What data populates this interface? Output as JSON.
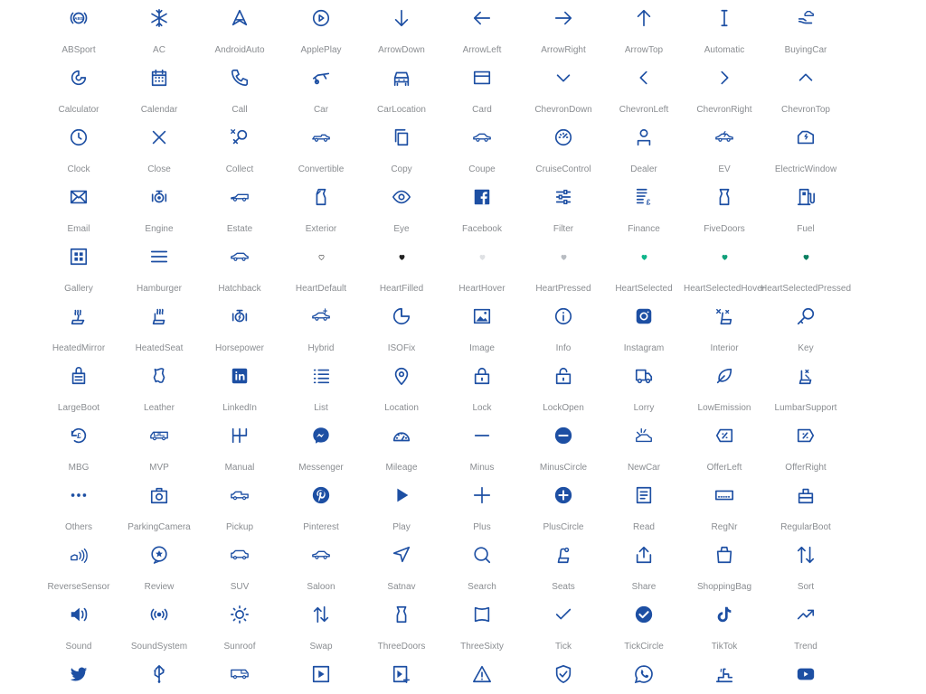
{
  "icon_color": "#1d4fa3",
  "accent_color": "#0fb58a",
  "label_color": "#8a8d91",
  "icons": [
    {
      "label": "ABSport",
      "icon": "abs-icon"
    },
    {
      "label": "AC",
      "icon": "snowflake-icon"
    },
    {
      "label": "AndroidAuto",
      "icon": "android-auto-icon"
    },
    {
      "label": "ApplePlay",
      "icon": "apple-play-icon"
    },
    {
      "label": "ArrowDown",
      "icon": "arrow-down-icon"
    },
    {
      "label": "ArrowLeft",
      "icon": "arrow-left-icon"
    },
    {
      "label": "ArrowRight",
      "icon": "arrow-right-icon"
    },
    {
      "label": "ArrowTop",
      "icon": "arrow-top-icon"
    },
    {
      "label": "Automatic",
      "icon": "automatic-icon"
    },
    {
      "label": "BuyingCar",
      "icon": "buying-car-icon"
    },
    {
      "label": "Calculator",
      "icon": "calculator-icon"
    },
    {
      "label": "Calendar",
      "icon": "calendar-icon"
    },
    {
      "label": "Call",
      "icon": "phone-icon"
    },
    {
      "label": "Car",
      "icon": "car-icon"
    },
    {
      "label": "CarLocation",
      "icon": "car-location-icon"
    },
    {
      "label": "Card",
      "icon": "card-icon"
    },
    {
      "label": "ChevronDown",
      "icon": "chevron-down-icon"
    },
    {
      "label": "ChevronLeft",
      "icon": "chevron-left-icon"
    },
    {
      "label": "ChevronRight",
      "icon": "chevron-right-icon"
    },
    {
      "label": "ChevronTop",
      "icon": "chevron-top-icon"
    },
    {
      "label": "Clock",
      "icon": "clock-icon"
    },
    {
      "label": "Close",
      "icon": "close-icon"
    },
    {
      "label": "Collect",
      "icon": "collect-icon"
    },
    {
      "label": "Convertible",
      "icon": "convertible-icon"
    },
    {
      "label": "Copy",
      "icon": "copy-icon"
    },
    {
      "label": "Coupe",
      "icon": "coupe-icon"
    },
    {
      "label": "CruiseControl",
      "icon": "cruise-control-icon"
    },
    {
      "label": "Dealer",
      "icon": "dealer-icon"
    },
    {
      "label": "EV",
      "icon": "ev-icon"
    },
    {
      "label": "ElectricWindow",
      "icon": "electric-window-icon"
    },
    {
      "label": "Email",
      "icon": "email-icon"
    },
    {
      "label": "Engine",
      "icon": "engine-icon"
    },
    {
      "label": "Estate",
      "icon": "estate-icon"
    },
    {
      "label": "Exterior",
      "icon": "exterior-icon"
    },
    {
      "label": "Eye",
      "icon": "eye-icon"
    },
    {
      "label": "Facebook",
      "icon": "facebook-icon"
    },
    {
      "label": "Filter",
      "icon": "filter-icon"
    },
    {
      "label": "Finance",
      "icon": "finance-icon"
    },
    {
      "label": "FiveDoors",
      "icon": "five-doors-icon"
    },
    {
      "label": "Fuel",
      "icon": "fuel-icon"
    },
    {
      "label": "Gallery",
      "icon": "gallery-icon"
    },
    {
      "label": "Hamburger",
      "icon": "hamburger-icon"
    },
    {
      "label": "Hatchback",
      "icon": "hatchback-icon"
    },
    {
      "label": "HeartDefault",
      "icon": "heart-default-icon"
    },
    {
      "label": "HeartFilled",
      "icon": "heart-filled-icon"
    },
    {
      "label": "HeartHover",
      "icon": "heart-hover-icon"
    },
    {
      "label": "HeartPressed",
      "icon": "heart-pressed-icon"
    },
    {
      "label": "HeartSelected",
      "icon": "heart-selected-icon"
    },
    {
      "label": "HeartSelectedHover",
      "icon": "heart-selected-hover-icon"
    },
    {
      "label": "HeartSelectedPressed",
      "icon": "heart-selected-pressed-icon"
    },
    {
      "label": "HeatedMirror",
      "icon": "heated-mirror-icon"
    },
    {
      "label": "HeatedSeat",
      "icon": "heated-seat-icon"
    },
    {
      "label": "Horsepower",
      "icon": "horsepower-icon"
    },
    {
      "label": "Hybrid",
      "icon": "hybrid-icon"
    },
    {
      "label": "ISOFix",
      "icon": "isofix-icon"
    },
    {
      "label": "Image",
      "icon": "image-icon"
    },
    {
      "label": "Info",
      "icon": "info-icon"
    },
    {
      "label": "Instagram",
      "icon": "instagram-icon"
    },
    {
      "label": "Interior",
      "icon": "interior-icon"
    },
    {
      "label": "Key",
      "icon": "key-icon"
    },
    {
      "label": "LargeBoot",
      "icon": "large-boot-icon"
    },
    {
      "label": "Leather",
      "icon": "leather-icon"
    },
    {
      "label": "LinkedIn",
      "icon": "linkedin-icon"
    },
    {
      "label": "List",
      "icon": "list-icon"
    },
    {
      "label": "Location",
      "icon": "location-icon"
    },
    {
      "label": "Lock",
      "icon": "lock-icon"
    },
    {
      "label": "LockOpen",
      "icon": "lock-open-icon"
    },
    {
      "label": "Lorry",
      "icon": "lorry-icon"
    },
    {
      "label": "LowEmission",
      "icon": "low-emission-icon"
    },
    {
      "label": "LumbarSupport",
      "icon": "lumbar-support-icon"
    },
    {
      "label": "MBG",
      "icon": "mbg-icon"
    },
    {
      "label": "MVP",
      "icon": "mvp-icon"
    },
    {
      "label": "Manual",
      "icon": "manual-icon"
    },
    {
      "label": "Messenger",
      "icon": "messenger-icon"
    },
    {
      "label": "Mileage",
      "icon": "mileage-icon"
    },
    {
      "label": "Minus",
      "icon": "minus-icon"
    },
    {
      "label": "MinusCircle",
      "icon": "minus-circle-icon"
    },
    {
      "label": "NewCar",
      "icon": "new-car-icon"
    },
    {
      "label": "OfferLeft",
      "icon": "offer-left-icon"
    },
    {
      "label": "OfferRight",
      "icon": "offer-right-icon"
    },
    {
      "label": "Others",
      "icon": "others-icon"
    },
    {
      "label": "ParkingCamera",
      "icon": "parking-camera-icon"
    },
    {
      "label": "Pickup",
      "icon": "pickup-icon"
    },
    {
      "label": "Pinterest",
      "icon": "pinterest-icon"
    },
    {
      "label": "Play",
      "icon": "play-icon"
    },
    {
      "label": "Plus",
      "icon": "plus-icon"
    },
    {
      "label": "PlusCircle",
      "icon": "plus-circle-icon"
    },
    {
      "label": "Read",
      "icon": "read-icon"
    },
    {
      "label": "RegNr",
      "icon": "reg-nr-icon"
    },
    {
      "label": "RegularBoot",
      "icon": "regular-boot-icon"
    },
    {
      "label": "ReverseSensor",
      "icon": "reverse-sensor-icon"
    },
    {
      "label": "Review",
      "icon": "review-icon"
    },
    {
      "label": "SUV",
      "icon": "suv-icon"
    },
    {
      "label": "Saloon",
      "icon": "saloon-icon"
    },
    {
      "label": "Satnav",
      "icon": "satnav-icon"
    },
    {
      "label": "Search",
      "icon": "search-icon"
    },
    {
      "label": "Seats",
      "icon": "seats-icon"
    },
    {
      "label": "Share",
      "icon": "share-icon"
    },
    {
      "label": "ShoppingBag",
      "icon": "shopping-bag-icon"
    },
    {
      "label": "Sort",
      "icon": "sort-icon"
    },
    {
      "label": "Sound",
      "icon": "sound-icon"
    },
    {
      "label": "SoundSystem",
      "icon": "sound-system-icon"
    },
    {
      "label": "Sunroof",
      "icon": "sunroof-icon"
    },
    {
      "label": "Swap",
      "icon": "swap-icon"
    },
    {
      "label": "ThreeDoors",
      "icon": "three-doors-icon"
    },
    {
      "label": "ThreeSixty",
      "icon": "three-sixty-icon"
    },
    {
      "label": "Tick",
      "icon": "tick-icon"
    },
    {
      "label": "TickCircle",
      "icon": "tick-circle-icon"
    },
    {
      "label": "TikTok",
      "icon": "tiktok-icon"
    },
    {
      "label": "Trend",
      "icon": "trend-icon"
    },
    {
      "label": "",
      "icon": "twitter-icon"
    },
    {
      "label": "",
      "icon": "usb-icon"
    },
    {
      "label": "",
      "icon": "van-icon"
    },
    {
      "label": "",
      "icon": "video-icon"
    },
    {
      "label": "",
      "icon": "video-add-icon"
    },
    {
      "label": "",
      "icon": "warning-icon"
    },
    {
      "label": "",
      "icon": "warranty-icon"
    },
    {
      "label": "",
      "icon": "whatsapp-icon"
    },
    {
      "label": "",
      "icon": "wheelchair-icon"
    },
    {
      "label": "",
      "icon": "youtube-icon"
    }
  ]
}
